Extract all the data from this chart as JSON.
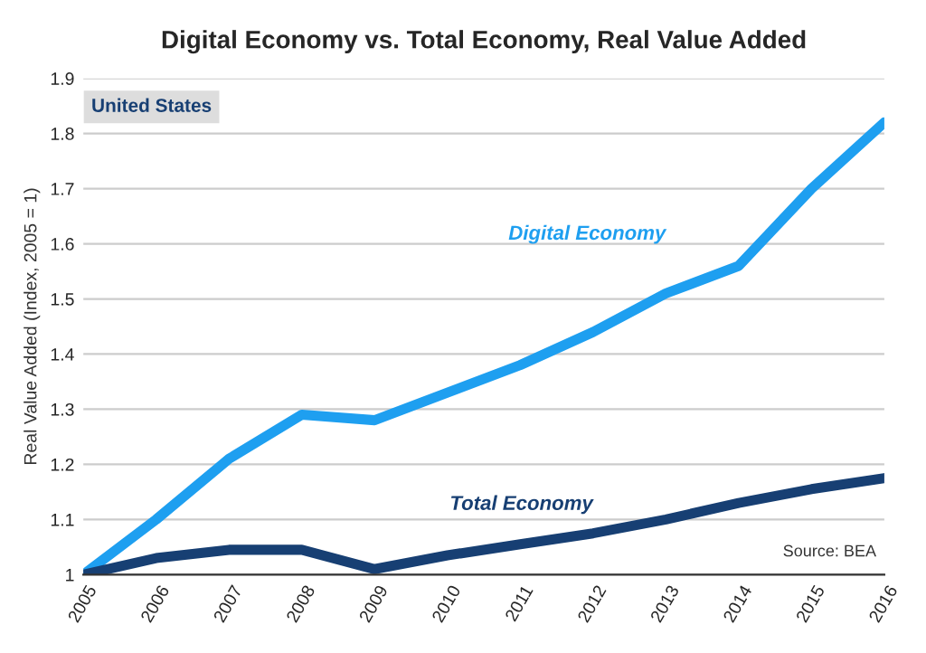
{
  "chart_data": {
    "type": "line",
    "title": "Digital Economy vs. Total Economy, Real Value Added",
    "ylabel": "Real Value Added (Index, 2005 = 1)",
    "categories": [
      "2005",
      "2006",
      "2007",
      "2008",
      "2009",
      "2010",
      "2011",
      "2012",
      "2013",
      "2014",
      "2015",
      "2016"
    ],
    "series": [
      {
        "name": "Digital Economy",
        "color": "#1e9ff0",
        "values": [
          1.0,
          1.1,
          1.21,
          1.29,
          1.28,
          1.33,
          1.38,
          1.44,
          1.51,
          1.56,
          1.7,
          1.82
        ]
      },
      {
        "name": "Total Economy",
        "color": "#173f73",
        "values": [
          1.0,
          1.03,
          1.045,
          1.045,
          1.01,
          1.035,
          1.055,
          1.075,
          1.1,
          1.13,
          1.155,
          1.175
        ]
      }
    ],
    "ylim": [
      1,
      1.9
    ],
    "yticks": [
      1,
      1.1,
      1.2,
      1.3,
      1.4,
      1.5,
      1.6,
      1.7,
      1.8,
      1.9
    ],
    "grid": "y",
    "legend": false,
    "line_style": "solid",
    "marker": "none",
    "annotations": [
      "United States",
      "Source: BEA"
    ]
  }
}
